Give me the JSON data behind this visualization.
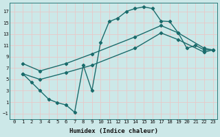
{
  "bg_color": "#cce8e8",
  "grid_color": "#e8c8c8",
  "line_color": "#1a6b6b",
  "xlabel": "Humidex (Indice chaleur)",
  "xlim": [
    -0.5,
    23.5
  ],
  "ylim": [
    -2.0,
    18.5
  ],
  "xticks": [
    0,
    1,
    2,
    3,
    4,
    5,
    6,
    7,
    8,
    9,
    10,
    11,
    12,
    13,
    14,
    15,
    16,
    17,
    18,
    19,
    20,
    21,
    22,
    23
  ],
  "yticks": [
    -1,
    1,
    3,
    5,
    7,
    9,
    11,
    13,
    15,
    17
  ],
  "main_x": [
    1,
    2,
    3,
    4,
    5,
    6,
    7,
    8,
    9,
    10,
    11,
    12,
    13,
    14,
    15,
    16,
    17,
    18,
    19,
    20,
    21,
    22,
    23
  ],
  "main_y": [
    6.0,
    4.5,
    3.0,
    1.5,
    0.9,
    0.5,
    -0.8,
    7.5,
    3.0,
    11.5,
    15.2,
    15.8,
    17.0,
    17.5,
    17.8,
    17.5,
    15.3,
    15.2,
    13.2,
    10.5,
    11.0,
    10.2,
    10.2
  ],
  "line2_x": [
    1,
    3,
    6,
    9,
    14,
    17,
    19,
    22,
    23
  ],
  "line2_y": [
    7.8,
    6.5,
    7.8,
    9.5,
    12.5,
    14.5,
    13.2,
    10.5,
    10.2
  ],
  "line3_x": [
    1,
    3,
    6,
    9,
    14,
    17,
    19,
    22,
    23
  ],
  "line3_y": [
    6.0,
    5.0,
    6.2,
    7.5,
    10.5,
    13.2,
    12.0,
    9.8,
    10.2
  ]
}
